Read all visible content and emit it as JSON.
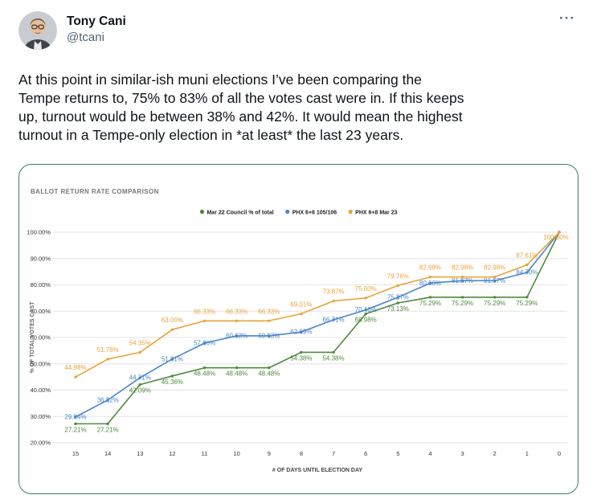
{
  "tweet": {
    "author": "Tony Cani",
    "handle": "@tcani",
    "more_icon": "···",
    "body": "At this point in similar-ish muni elections  I’ve been comparing the\nTempe returns to, 75% to 83% of all the votes cast were in. If this keeps\nup, turnout would be between 38% and 42%. It would mean the highest\nturnout in a Tempe-only election in *at least* the last 23 years."
  },
  "colors": {
    "card_border": "#35806e",
    "text_primary": "#0f1419",
    "text_secondary": "#536471"
  },
  "chart_data": {
    "type": "line",
    "title": "BALLOT RETURN RATE COMPARISON",
    "xlabel": "# OF DAYS UNTIL ELECTION DAY",
    "ylabel": "% OF TOTAL VOTES CAST",
    "x": [
      15,
      14,
      13,
      12,
      11,
      10,
      9,
      8,
      7,
      6,
      5,
      4,
      3,
      2,
      1,
      0
    ],
    "ylim": [
      20,
      100
    ],
    "ytick_step": 10,
    "grid": true,
    "legend_position": "top",
    "series": [
      {
        "name": "Mar 22 Council % of total",
        "color": "#4e8a3c",
        "values": [
          27.21,
          27.21,
          42.09,
          45.36,
          48.48,
          48.48,
          48.48,
          54.38,
          54.38,
          68.98,
          73.13,
          75.29,
          75.29,
          75.29,
          75.29,
          100.0
        ]
      },
      {
        "name": "PHX 6+8 105/106",
        "color": "#4a86c8",
        "values": [
          29.84,
          36.22,
          44.71,
          51.81,
          57.86,
          60.63,
          60.63,
          62.09,
          66.71,
          70.46,
          75.27,
          80.66,
          81.57,
          81.57,
          84.7,
          100.0
        ]
      },
      {
        "name": "PHX 6+8 Mar 23",
        "color": "#e8a33d",
        "values": [
          44.98,
          51.78,
          54.35,
          63.0,
          66.33,
          66.33,
          66.33,
          69.01,
          73.87,
          75.0,
          79.76,
          82.98,
          82.98,
          82.98,
          87.61,
          100.0
        ]
      }
    ]
  }
}
